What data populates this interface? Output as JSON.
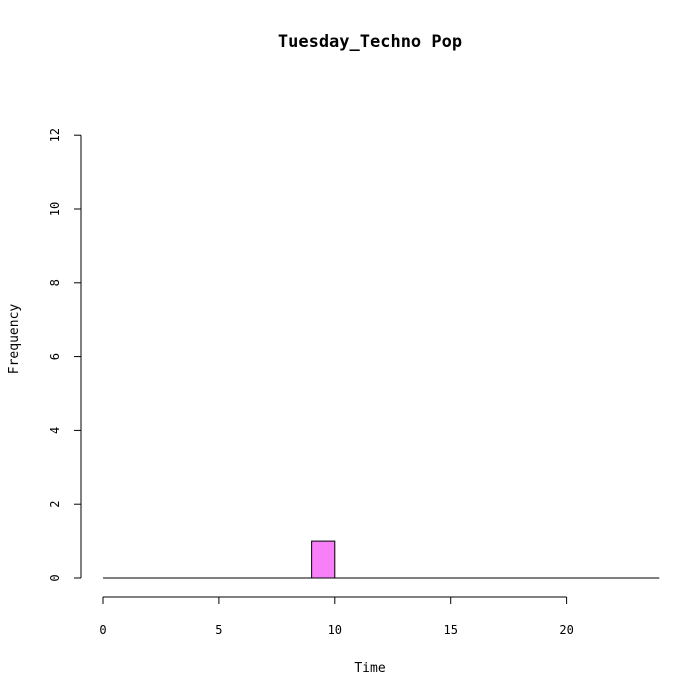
{
  "chart_data": {
    "type": "bar",
    "title": "Tuesday_Techno Pop",
    "xlabel": "Time",
    "ylabel": "Frequency",
    "xlim": [
      0,
      24
    ],
    "ylim": [
      0,
      12
    ],
    "x_ticks": [
      0,
      5,
      10,
      15,
      20
    ],
    "y_ticks": [
      0,
      2,
      4,
      6,
      8,
      10,
      12
    ],
    "bin_width": 1,
    "bins": [
      {
        "start": 9,
        "end": 10,
        "count": 1
      }
    ],
    "bar_color": "#f77ff7",
    "grid": false
  }
}
